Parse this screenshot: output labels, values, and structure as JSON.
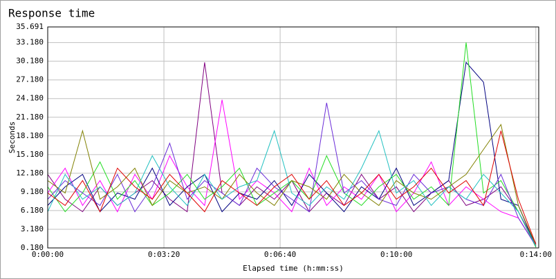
{
  "chart_data": {
    "type": "line",
    "title": "Response time",
    "x_label": "Elapsed time (h:mm:ss)",
    "y_label": "Seconds",
    "x": [
      0,
      30,
      60,
      90,
      120,
      150,
      180,
      210,
      240,
      270,
      300,
      330,
      360,
      390,
      420,
      450,
      480,
      510,
      540,
      570,
      600,
      630,
      660,
      690,
      720,
      750,
      780,
      810,
      840
    ],
    "xlim": [
      0,
      845
    ],
    "xticks": [
      {
        "value": 0,
        "label": "0:00:00"
      },
      {
        "value": 200,
        "label": "0:03:20"
      },
      {
        "value": 400,
        "label": "0:06:40"
      },
      {
        "value": 600,
        "label": "0:10:00"
      },
      {
        "value": 840,
        "label": "0:14:00"
      }
    ],
    "ylim": [
      0.18,
      35.691
    ],
    "yticks": [
      {
        "value": 0.18,
        "label": "0.180"
      },
      {
        "value": 3.18,
        "label": "3.180"
      },
      {
        "value": 6.18,
        "label": "6.180"
      },
      {
        "value": 9.18,
        "label": "9.180"
      },
      {
        "value": 12.18,
        "label": "12.180"
      },
      {
        "value": 15.18,
        "label": "15.180"
      },
      {
        "value": 18.18,
        "label": "18.180"
      },
      {
        "value": 21.18,
        "label": "21.180"
      },
      {
        "value": 24.18,
        "label": "24.180"
      },
      {
        "value": 27.18,
        "label": "27.180"
      },
      {
        "value": 30.18,
        "label": "30.180"
      },
      {
        "value": 33.18,
        "label": "33.180"
      },
      35.691
    ],
    "grid": true,
    "series": [
      {
        "color": "#800080",
        "values": [
          12,
          8,
          6,
          10,
          7,
          9,
          11,
          8,
          6,
          30,
          9,
          7,
          10,
          8,
          11,
          6,
          9,
          7,
          12,
          8,
          10,
          6,
          9,
          11,
          7,
          8,
          10,
          6,
          0.9
        ]
      },
      {
        "color": "#ff00ff",
        "values": [
          9,
          13,
          7,
          11,
          6,
          12,
          8,
          15,
          10,
          7,
          24,
          8,
          11,
          9,
          6,
          13,
          7,
          10,
          8,
          12,
          6,
          9,
          14,
          7,
          10,
          8,
          6,
          5,
          0.6
        ]
      },
      {
        "color": "#000080",
        "values": [
          7,
          10,
          12,
          6,
          9,
          8,
          13,
          7,
          10,
          12,
          6,
          9,
          8,
          11,
          7,
          12,
          9,
          6,
          10,
          8,
          13,
          7,
          9,
          11,
          30,
          26.8,
          8,
          7,
          0.4
        ]
      },
      {
        "color": "#22dd22",
        "values": [
          10,
          6,
          9,
          14,
          8,
          11,
          7,
          9,
          12,
          8,
          10,
          13,
          7,
          9,
          11,
          8,
          15,
          9,
          7,
          10,
          12,
          8,
          10,
          7,
          33.18,
          9,
          11,
          6,
          0.3
        ]
      },
      {
        "color": "#6a2bd8",
        "values": [
          8,
          11,
          9,
          7,
          12,
          6,
          10,
          17,
          8,
          11,
          9,
          7,
          13,
          10,
          8,
          6,
          23.5,
          9,
          11,
          8,
          7,
          12,
          9,
          10,
          8,
          7,
          12,
          5,
          0.5
        ]
      },
      {
        "color": "#808000",
        "values": [
          11,
          9,
          19,
          8,
          10,
          13,
          7,
          11,
          9,
          10,
          8,
          12,
          9,
          7,
          11,
          10,
          8,
          12,
          9,
          7,
          11,
          9,
          8,
          10,
          12,
          16,
          20,
          7,
          0.7
        ]
      },
      {
        "color": "#20c0c0",
        "values": [
          6,
          12,
          8,
          10,
          7,
          9,
          15,
          10,
          7,
          12,
          8,
          10,
          11,
          19,
          9,
          7,
          10,
          8,
          13,
          19,
          9,
          11,
          7,
          10,
          8,
          12,
          9,
          6,
          0.5
        ]
      },
      {
        "color": "#e00000",
        "values": [
          9,
          7,
          11,
          6,
          13,
          10,
          8,
          12,
          9,
          6,
          11,
          9,
          7,
          10,
          12,
          8,
          11,
          7,
          9,
          12,
          8,
          10,
          13,
          9,
          11,
          7,
          19,
          8,
          0.8
        ]
      }
    ]
  }
}
